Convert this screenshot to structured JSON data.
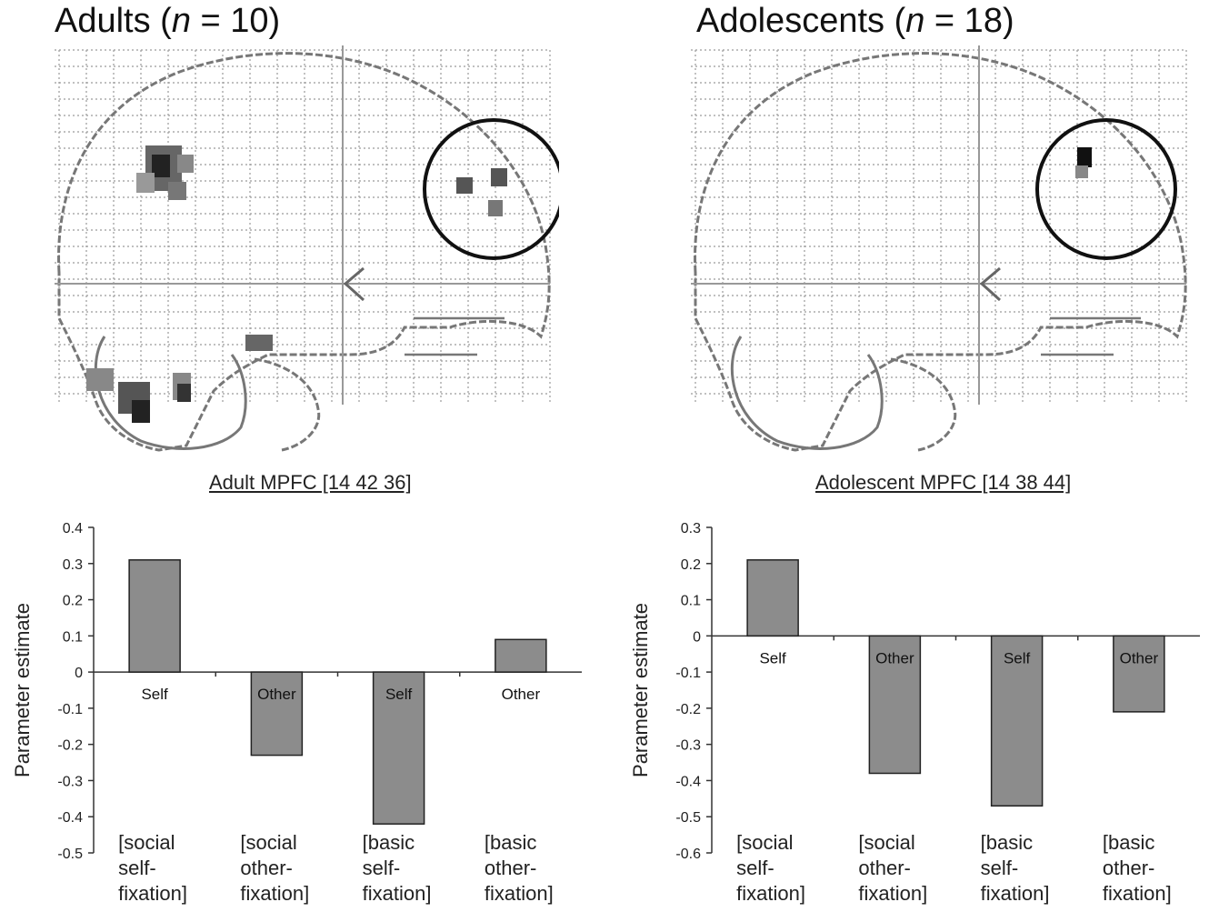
{
  "panels": [
    {
      "title_prefix": "Adults (",
      "title_italic": "n",
      "title_suffix": " = 10)",
      "roi_label": "Adult MPFC [14 42 36]",
      "ylabel": "Parameter estimate"
    },
    {
      "title_prefix": "Adolescents (",
      "title_italic": "n",
      "title_suffix": " = 18)",
      "roi_label": "Adolescent MPFC [14 38 44]",
      "ylabel": "Parameter estimate"
    }
  ],
  "chart_data": [
    {
      "type": "bar",
      "ylabel": "Parameter estimate",
      "ylim": [
        -0.5,
        0.4
      ],
      "yticks": [
        "0.4",
        "0.3",
        "0.2",
        "0.1",
        "0",
        "-0.1",
        "-0.2",
        "-0.3",
        "-0.4",
        "-0.5"
      ],
      "categories": [
        [
          "[social",
          "self-",
          "fixation]"
        ],
        [
          "[social",
          "other-",
          "fixation]"
        ],
        [
          "[basic",
          "self-",
          "fixation]"
        ],
        [
          "[basic",
          "other-",
          "fixation]"
        ]
      ],
      "bar_labels": [
        "Self",
        "Other",
        "Self",
        "Other"
      ],
      "values": [
        0.31,
        -0.23,
        -0.42,
        0.09
      ],
      "bar_color": "#8c8c8c"
    },
    {
      "type": "bar",
      "ylabel": "Parameter estimate",
      "ylim": [
        -0.6,
        0.3
      ],
      "yticks": [
        "0.3",
        "0.2",
        "0.1",
        "0",
        "-0.1",
        "-0.2",
        "-0.3",
        "-0.4",
        "-0.5",
        "-0.6"
      ],
      "categories": [
        [
          "[social",
          "self-",
          "fixation]"
        ],
        [
          "[social",
          "other-",
          "fixation]"
        ],
        [
          "[basic",
          "self-",
          "fixation]"
        ],
        [
          "[basic",
          "other-",
          "fixation]"
        ]
      ],
      "bar_labels": [
        "Self",
        "Other",
        "Self",
        "Other"
      ],
      "values": [
        0.21,
        -0.38,
        -0.47,
        -0.21
      ],
      "bar_color": "#8c8c8c"
    }
  ]
}
